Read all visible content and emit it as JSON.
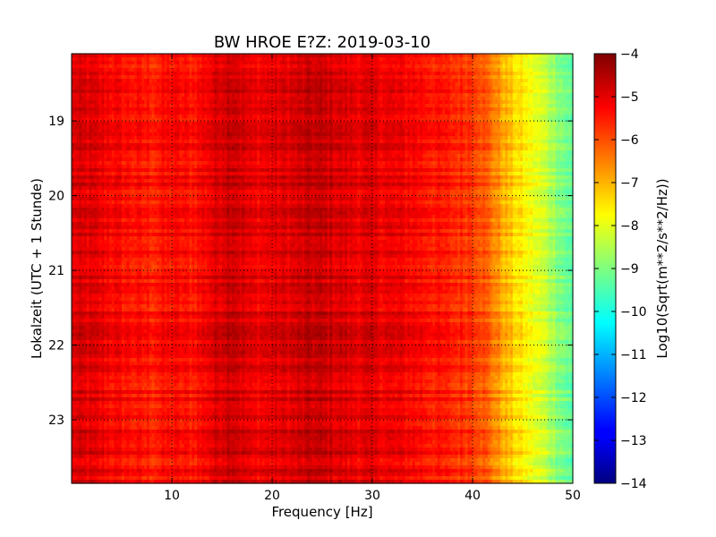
{
  "chart_data": {
    "type": "heatmap",
    "title": "BW HROE E?Z: 2019-03-10",
    "xlabel": "Frequency [Hz]",
    "ylabel": "Lokalzeit (UTC + 1 Stunde)",
    "xlim": [
      0,
      50
    ],
    "ylim": [
      18.1,
      23.85
    ],
    "x_ticks": [
      10,
      20,
      30,
      40,
      50
    ],
    "y_ticks": [
      19,
      20,
      21,
      22,
      23
    ],
    "grid": true,
    "colorbar": {
      "label": "Log10(Sqrt(m**2/s**2/Hz))",
      "min": -14,
      "max": -4,
      "ticks": [
        -4,
        -5,
        -6,
        -7,
        -8,
        -9,
        -10,
        -11,
        -12,
        -13,
        -14
      ],
      "colormap": "jet"
    },
    "spectral_profile": {
      "frequency_hz": [
        0,
        2,
        5,
        8,
        10,
        12,
        14,
        16,
        18,
        20,
        22,
        24,
        26,
        28,
        30,
        32,
        34,
        36,
        38,
        40,
        41,
        42,
        43,
        44,
        45,
        46,
        47,
        48,
        49,
        50
      ],
      "log10_amplitude": [
        -4.9,
        -5.0,
        -5.3,
        -5.5,
        -5.3,
        -5.4,
        -5.0,
        -4.6,
        -5.1,
        -5.0,
        -4.9,
        -4.7,
        -4.8,
        -5.0,
        -5.0,
        -5.1,
        -5.2,
        -5.4,
        -5.6,
        -5.7,
        -6.0,
        -6.4,
        -6.9,
        -7.3,
        -7.6,
        -7.9,
        -8.2,
        -8.6,
        -9.0,
        -9.4
      ]
    }
  }
}
